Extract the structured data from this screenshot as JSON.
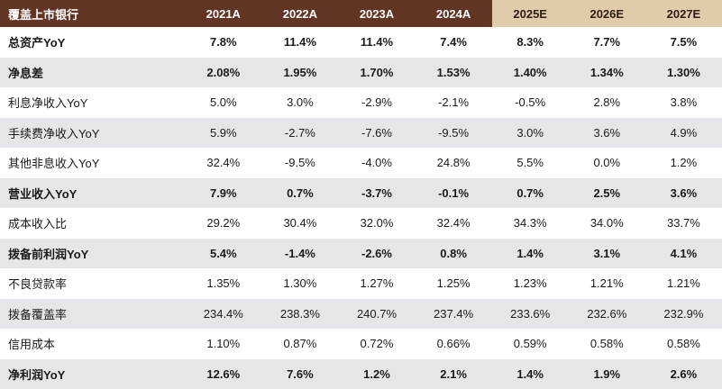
{
  "chart_data": {
    "type": "table",
    "corner_label": "覆盖上市银行",
    "columns": [
      "2021A",
      "2022A",
      "2023A",
      "2024A",
      "2025E",
      "2026E",
      "2027E"
    ],
    "column_types": [
      "actual",
      "actual",
      "actual",
      "actual",
      "estimate",
      "estimate",
      "estimate"
    ],
    "rows": [
      {
        "label": "总资产YoY",
        "bold": true,
        "values": [
          "7.8%",
          "11.4%",
          "11.4%",
          "7.4%",
          "8.3%",
          "7.7%",
          "7.5%"
        ]
      },
      {
        "label": "净息差",
        "bold": true,
        "values": [
          "2.08%",
          "1.95%",
          "1.70%",
          "1.53%",
          "1.40%",
          "1.34%",
          "1.30%"
        ]
      },
      {
        "label": "利息净收入YoY",
        "bold": false,
        "values": [
          "5.0%",
          "3.0%",
          "-2.9%",
          "-2.1%",
          "-0.5%",
          "2.8%",
          "3.8%"
        ]
      },
      {
        "label": "手续费净收入YoY",
        "bold": false,
        "values": [
          "5.9%",
          "-2.7%",
          "-7.6%",
          "-9.5%",
          "3.0%",
          "3.6%",
          "4.9%"
        ]
      },
      {
        "label": "其他非息收入YoY",
        "bold": false,
        "values": [
          "32.4%",
          "-9.5%",
          "-4.0%",
          "24.8%",
          "5.5%",
          "0.0%",
          "1.2%"
        ]
      },
      {
        "label": "营业收入YoY",
        "bold": true,
        "values": [
          "7.9%",
          "0.7%",
          "-3.7%",
          "-0.1%",
          "0.7%",
          "2.5%",
          "3.6%"
        ]
      },
      {
        "label": "成本收入比",
        "bold": false,
        "values": [
          "29.2%",
          "30.4%",
          "32.0%",
          "32.4%",
          "34.3%",
          "34.0%",
          "33.7%"
        ]
      },
      {
        "label": "拨备前利润YoY",
        "bold": true,
        "values": [
          "5.4%",
          "-1.4%",
          "-2.6%",
          "0.8%",
          "1.4%",
          "3.1%",
          "4.1%"
        ]
      },
      {
        "label": "不良贷款率",
        "bold": false,
        "values": [
          "1.35%",
          "1.30%",
          "1.27%",
          "1.25%",
          "1.23%",
          "1.21%",
          "1.21%"
        ]
      },
      {
        "label": "拨备覆盖率",
        "bold": false,
        "values": [
          "234.4%",
          "238.3%",
          "240.7%",
          "237.4%",
          "233.6%",
          "232.6%",
          "232.9%"
        ]
      },
      {
        "label": "信用成本",
        "bold": false,
        "values": [
          "1.10%",
          "0.87%",
          "0.72%",
          "0.66%",
          "0.59%",
          "0.58%",
          "0.58%"
        ]
      },
      {
        "label": "净利润YoY",
        "bold": true,
        "values": [
          "12.6%",
          "7.6%",
          "1.2%",
          "2.1%",
          "1.4%",
          "1.9%",
          "2.6%"
        ]
      }
    ]
  },
  "colors": {
    "header_bg": "#613424",
    "header_text": "#ffffff",
    "estimate_header_bg": "#e0cbaa",
    "estimate_header_text": "#2d1c12",
    "row_bg": "#ffffff",
    "row_alt_bg": "#e5e6ea",
    "value_text": "#1a1a1a"
  }
}
